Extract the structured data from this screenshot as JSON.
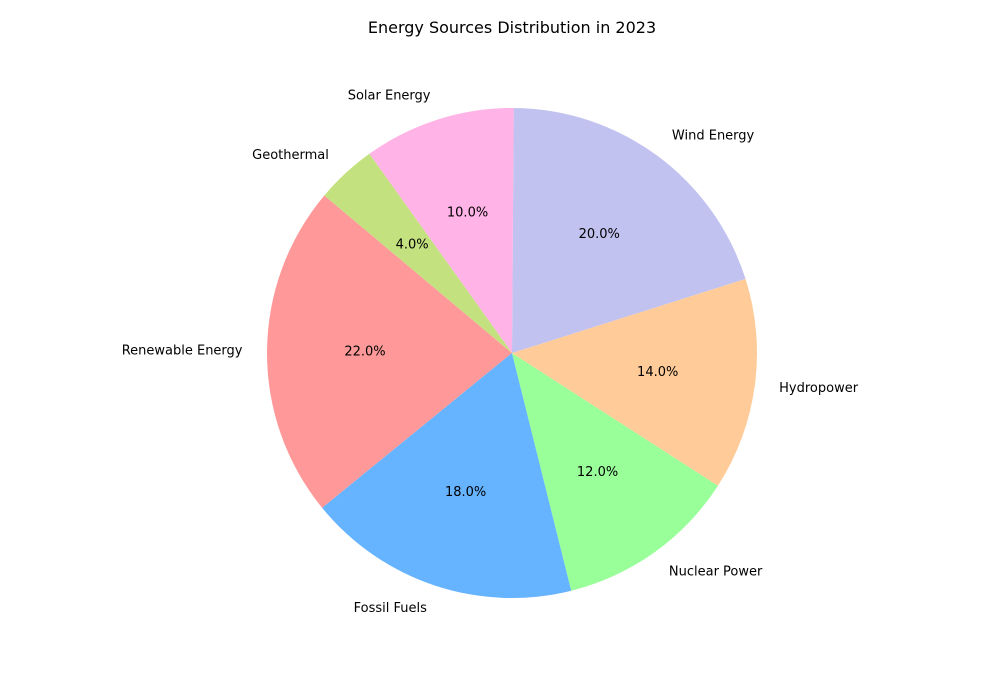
{
  "chart_data": {
    "type": "pie",
    "title": "Energy Sources Distribution in 2023",
    "slices": [
      {
        "label": "Renewable Energy",
        "value": 22.0,
        "pct_text": "22.0%",
        "color": "#ff9999"
      },
      {
        "label": "Fossil Fuels",
        "value": 18.0,
        "pct_text": "18.0%",
        "color": "#66b3ff"
      },
      {
        "label": "Nuclear Power",
        "value": 12.0,
        "pct_text": "12.0%",
        "color": "#99ff99"
      },
      {
        "label": "Hydropower",
        "value": 14.0,
        "pct_text": "14.0%",
        "color": "#ffcc99"
      },
      {
        "label": "Wind Energy",
        "value": 20.0,
        "pct_text": "20.0%",
        "color": "#c2c2f0"
      },
      {
        "label": "Solar Energy",
        "value": 10.0,
        "pct_text": "10.0%",
        "color": "#ffb3e6"
      },
      {
        "label": "Geothermal",
        "value": 4.0,
        "pct_text": "4.0%",
        "color": "#c4e17f"
      }
    ],
    "start_angle_deg": 140,
    "direction": "counterclockwise"
  }
}
